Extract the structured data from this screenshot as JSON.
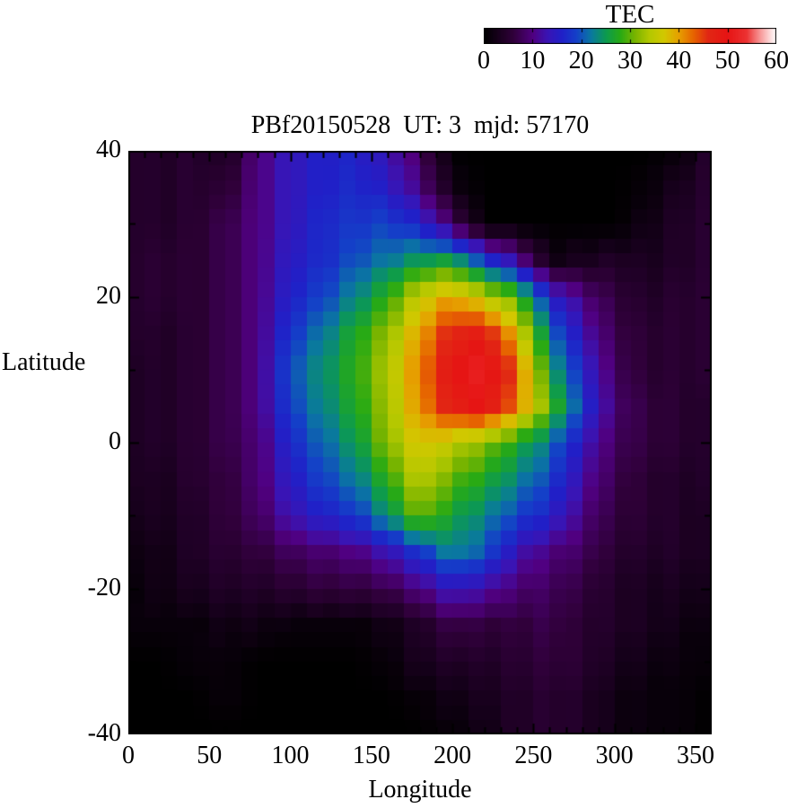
{
  "title": "PBf20150528  UT: 3  mjd: 57170",
  "colorbar": {
    "title": "TEC",
    "ticks": [
      0,
      10,
      20,
      30,
      40,
      50,
      60
    ],
    "min": 0,
    "max": 60
  },
  "axes": {
    "xlabel": "Longitude",
    "ylabel": "Latitude",
    "x_ticks": [
      0,
      50,
      100,
      150,
      200,
      250,
      300,
      350
    ],
    "y_ticks": [
      40,
      20,
      0,
      -20,
      -40
    ],
    "x_range": [
      0,
      360
    ],
    "y_range": [
      -40,
      40
    ],
    "x_minor_step": 10,
    "y_minor_step": 10
  },
  "chart_data": {
    "type": "heatmap",
    "title": "PBf20150528  UT: 3  mjd: 57170",
    "value_label": "TEC",
    "xlabel": "Longitude",
    "ylabel": "Latitude",
    "x_range": [
      0,
      360
    ],
    "y_range": [
      -40,
      40
    ],
    "value_range": [
      0,
      60
    ],
    "lon_nodes": [
      0,
      20,
      40,
      60,
      80,
      100,
      120,
      140,
      160,
      180,
      200,
      220,
      240,
      260,
      280,
      300,
      320,
      340,
      360
    ],
    "lat_nodes": [
      40,
      35,
      30,
      25,
      20,
      15,
      10,
      5,
      0,
      -5,
      -10,
      -15,
      -20,
      -25,
      -30,
      -35,
      -40
    ],
    "grid": [
      [
        5,
        4,
        5,
        3,
        10,
        14,
        16,
        16,
        13,
        8,
        0,
        0,
        0,
        0,
        0,
        0,
        0,
        1,
        5
      ],
      [
        5,
        4,
        5,
        5,
        10,
        14,
        16,
        17,
        15,
        10,
        2,
        0,
        0,
        0,
        0,
        0,
        1,
        3,
        5
      ],
      [
        5,
        4,
        5,
        7,
        10,
        14,
        17,
        18,
        19,
        16,
        8,
        0,
        0,
        0,
        0,
        0,
        2,
        4,
        5
      ],
      [
        5,
        5,
        5,
        7,
        10,
        15,
        17,
        20,
        22,
        25,
        26,
        18,
        12,
        2,
        3,
        4,
        3,
        4,
        5
      ],
      [
        5,
        5,
        5,
        7,
        10,
        16,
        19,
        23,
        28,
        36,
        40,
        35,
        30,
        16,
        10,
        6,
        4,
        5,
        5
      ],
      [
        5,
        4,
        5,
        7,
        10,
        18,
        22,
        27,
        32,
        40,
        47,
        48,
        38,
        22,
        13,
        7,
        5,
        5,
        5
      ],
      [
        4,
        4,
        5,
        7,
        10,
        20,
        24,
        28,
        34,
        42,
        50,
        52,
        44,
        26,
        16,
        8,
        5,
        5,
        5
      ],
      [
        4,
        4,
        5,
        7,
        10,
        19,
        23,
        27,
        33,
        41,
        48,
        50,
        42,
        30,
        18,
        9,
        6,
        5,
        4
      ],
      [
        4,
        4,
        5,
        7,
        9,
        17,
        21,
        25,
        32,
        38,
        35,
        32,
        27,
        22,
        14,
        8,
        6,
        5,
        4
      ],
      [
        4,
        3,
        5,
        6,
        9,
        15,
        19,
        22,
        28,
        35,
        30,
        27,
        23,
        19,
        12,
        7,
        5,
        4,
        4
      ],
      [
        3,
        3,
        4,
        6,
        8,
        13,
        16,
        18,
        24,
        31,
        26,
        23,
        19,
        16,
        10,
        6,
        5,
        4,
        3
      ],
      [
        2,
        2,
        4,
        5,
        6,
        8,
        9,
        10,
        13,
        18,
        23,
        20,
        13,
        10,
        8,
        5,
        4,
        4,
        3
      ],
      [
        1,
        2,
        3,
        4,
        4,
        5,
        6,
        6,
        7,
        10,
        14,
        12,
        9,
        8,
        6,
        4,
        3,
        3,
        2
      ],
      [
        1,
        1,
        1,
        2,
        2,
        1,
        1,
        1,
        2,
        4,
        7,
        6,
        6,
        7,
        5,
        4,
        3,
        2,
        1
      ],
      [
        0,
        0,
        1,
        1,
        0,
        0,
        0,
        0,
        1,
        3,
        4,
        4,
        5,
        6,
        5,
        3,
        2,
        1,
        1
      ],
      [
        0,
        0,
        0,
        1,
        0,
        0,
        0,
        0,
        0,
        1,
        2,
        3,
        4,
        5,
        4,
        2,
        1,
        1,
        0
      ],
      [
        0,
        0,
        0,
        0,
        0,
        0,
        0,
        0,
        0,
        0,
        1,
        2,
        4,
        5,
        4,
        2,
        1,
        1,
        0
      ]
    ],
    "colormap_stops": [
      [
        0,
        "#000000"
      ],
      [
        6,
        "#30003a"
      ],
      [
        10,
        "#500080"
      ],
      [
        13,
        "#3a14b4"
      ],
      [
        16,
        "#2020c8"
      ],
      [
        19,
        "#1440c8"
      ],
      [
        22,
        "#0a78a0"
      ],
      [
        25,
        "#0c9a50"
      ],
      [
        28,
        "#28aa14"
      ],
      [
        31,
        "#78b400"
      ],
      [
        34,
        "#b4c800"
      ],
      [
        37,
        "#d2c800"
      ],
      [
        40,
        "#e6a000"
      ],
      [
        43,
        "#e66400"
      ],
      [
        46,
        "#e12814"
      ],
      [
        50,
        "#e61414"
      ],
      [
        54,
        "#ec3232"
      ],
      [
        57,
        "#f8a0a0"
      ],
      [
        60,
        "#ffffff"
      ]
    ],
    "legend_position": "top-right",
    "grid_lines": false
  }
}
